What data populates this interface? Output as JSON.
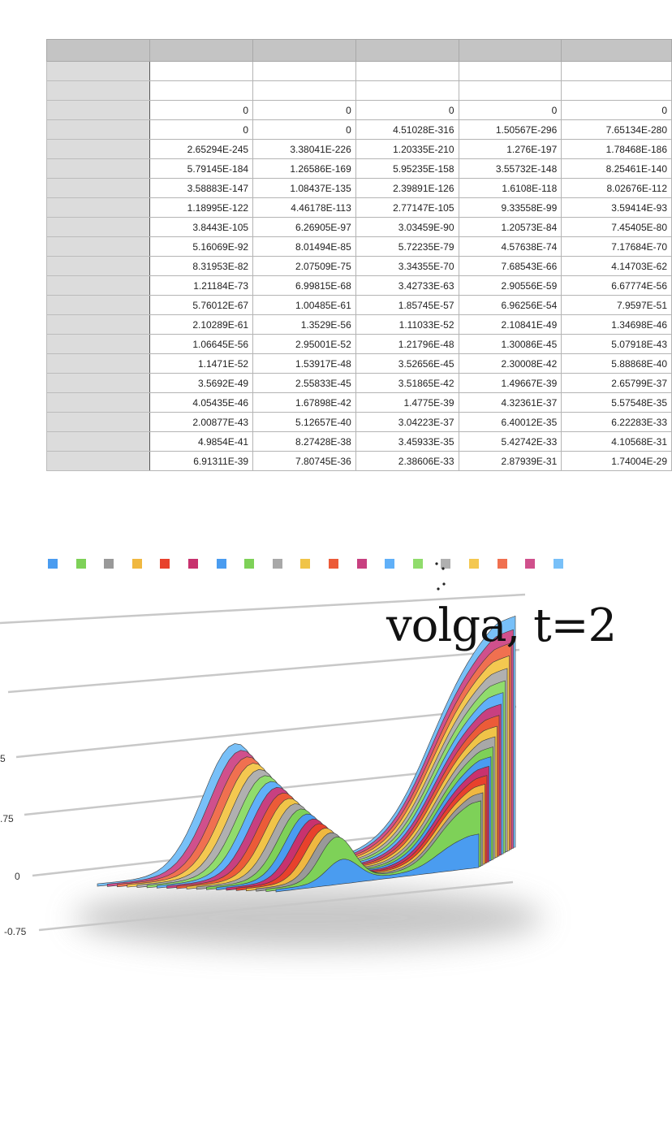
{
  "spreadsheet": {
    "column_headers": [
      "",
      "",
      "",
      "",
      "",
      ""
    ],
    "rows": [
      {
        "header": "",
        "cells": [
          "",
          "",
          "",
          "",
          ""
        ]
      },
      {
        "header": "",
        "cells": [
          "",
          "",
          "",
          "",
          ""
        ]
      },
      {
        "header": "",
        "cells": [
          "0",
          "0",
          "0",
          "0",
          "0"
        ]
      },
      {
        "header": "",
        "cells": [
          "0",
          "0",
          "4.51028E-316",
          "1.50567E-296",
          "7.65134E-280"
        ]
      },
      {
        "header": "",
        "cells": [
          "2.65294E-245",
          "3.38041E-226",
          "1.20335E-210",
          "1.276E-197",
          "1.78468E-186"
        ]
      },
      {
        "header": "",
        "cells": [
          "5.79145E-184",
          "1.26586E-169",
          "5.95235E-158",
          "3.55732E-148",
          "8.25461E-140"
        ]
      },
      {
        "header": "",
        "cells": [
          "3.58883E-147",
          "1.08437E-135",
          "2.39891E-126",
          "1.6108E-118",
          "8.02676E-112"
        ]
      },
      {
        "header": "",
        "cells": [
          "1.18995E-122",
          "4.46178E-113",
          "2.77147E-105",
          "9.33558E-99",
          "3.59414E-93"
        ]
      },
      {
        "header": "",
        "cells": [
          "3.8443E-105",
          "6.26905E-97",
          "3.03459E-90",
          "1.20573E-84",
          "7.45405E-80"
        ]
      },
      {
        "header": "",
        "cells": [
          "5.16069E-92",
          "8.01494E-85",
          "5.72235E-79",
          "4.57638E-74",
          "7.17684E-70"
        ]
      },
      {
        "header": "",
        "cells": [
          "8.31953E-82",
          "2.07509E-75",
          "3.34355E-70",
          "7.68543E-66",
          "4.14703E-62"
        ]
      },
      {
        "header": "",
        "cells": [
          "1.21184E-73",
          "6.99815E-68",
          "3.42733E-63",
          "2.90556E-59",
          "6.67774E-56"
        ]
      },
      {
        "header": "",
        "cells": [
          "5.76012E-67",
          "1.00485E-61",
          "1.85745E-57",
          "6.96256E-54",
          "7.9597E-51"
        ]
      },
      {
        "header": "",
        "cells": [
          "2.10289E-61",
          "1.3529E-56",
          "1.11033E-52",
          "2.10841E-49",
          "1.34698E-46"
        ]
      },
      {
        "header": "",
        "cells": [
          "1.06645E-56",
          "2.95001E-52",
          "1.21796E-48",
          "1.30086E-45",
          "5.07918E-43"
        ]
      },
      {
        "header": "",
        "cells": [
          "1.1471E-52",
          "1.53917E-48",
          "3.52656E-45",
          "2.30008E-42",
          "5.88868E-40"
        ]
      },
      {
        "header": "",
        "cells": [
          "3.5692E-49",
          "2.55833E-45",
          "3.51865E-42",
          "1.49667E-39",
          "2.65799E-37"
        ]
      },
      {
        "header": "",
        "cells": [
          "4.05435E-46",
          "1.67898E-42",
          "1.4775E-39",
          "4.32361E-37",
          "5.57548E-35"
        ]
      },
      {
        "header": "",
        "cells": [
          "2.00877E-43",
          "5.12657E-40",
          "3.04223E-37",
          "6.40012E-35",
          "6.22283E-33"
        ]
      },
      {
        "header": "",
        "cells": [
          "4.9854E-41",
          "8.27428E-38",
          "3.45933E-35",
          "5.42742E-33",
          "4.10568E-31"
        ]
      },
      {
        "header": "",
        "cells": [
          "6.91311E-39",
          "7.80745E-36",
          "2.38606E-33",
          "2.87939E-31",
          "1.74004E-29"
        ]
      }
    ]
  },
  "chart_data": {
    "type": "area",
    "title": "volga, t=2",
    "subtitle": "",
    "xlabel": "",
    "ylabel": "",
    "y_tick_labels": [
      "-0.75",
      "0",
      ".75",
      "5"
    ],
    "grid": true,
    "legend_placement": "top-left",
    "legend_colors": [
      "#4a9cf0",
      "#7ed158",
      "#999999",
      "#f0b840",
      "#e8412c",
      "#c8326e",
      "#4a9cf0",
      "#7ed158",
      "#a8a8a8",
      "#f0c448",
      "#ec5b38",
      "#c84080",
      "#60b0f8",
      "#90dc6c",
      "#b0b0b0",
      "#f4c850",
      "#f07050",
      "#d0508c",
      "#78c0f8"
    ],
    "series_count": 19,
    "series_colors": [
      "#4a9cf0",
      "#7ed158",
      "#999999",
      "#f0b840",
      "#e8412c",
      "#c8326e",
      "#4a9cf0",
      "#7ed158",
      "#a8a8a8",
      "#f0c448",
      "#ec5b38",
      "#c84080",
      "#60b0f8",
      "#90dc6c",
      "#b0b0b0",
      "#f4c850",
      "#f07050",
      "#d0508c",
      "#78c0f8"
    ],
    "depth_3d": true
  }
}
